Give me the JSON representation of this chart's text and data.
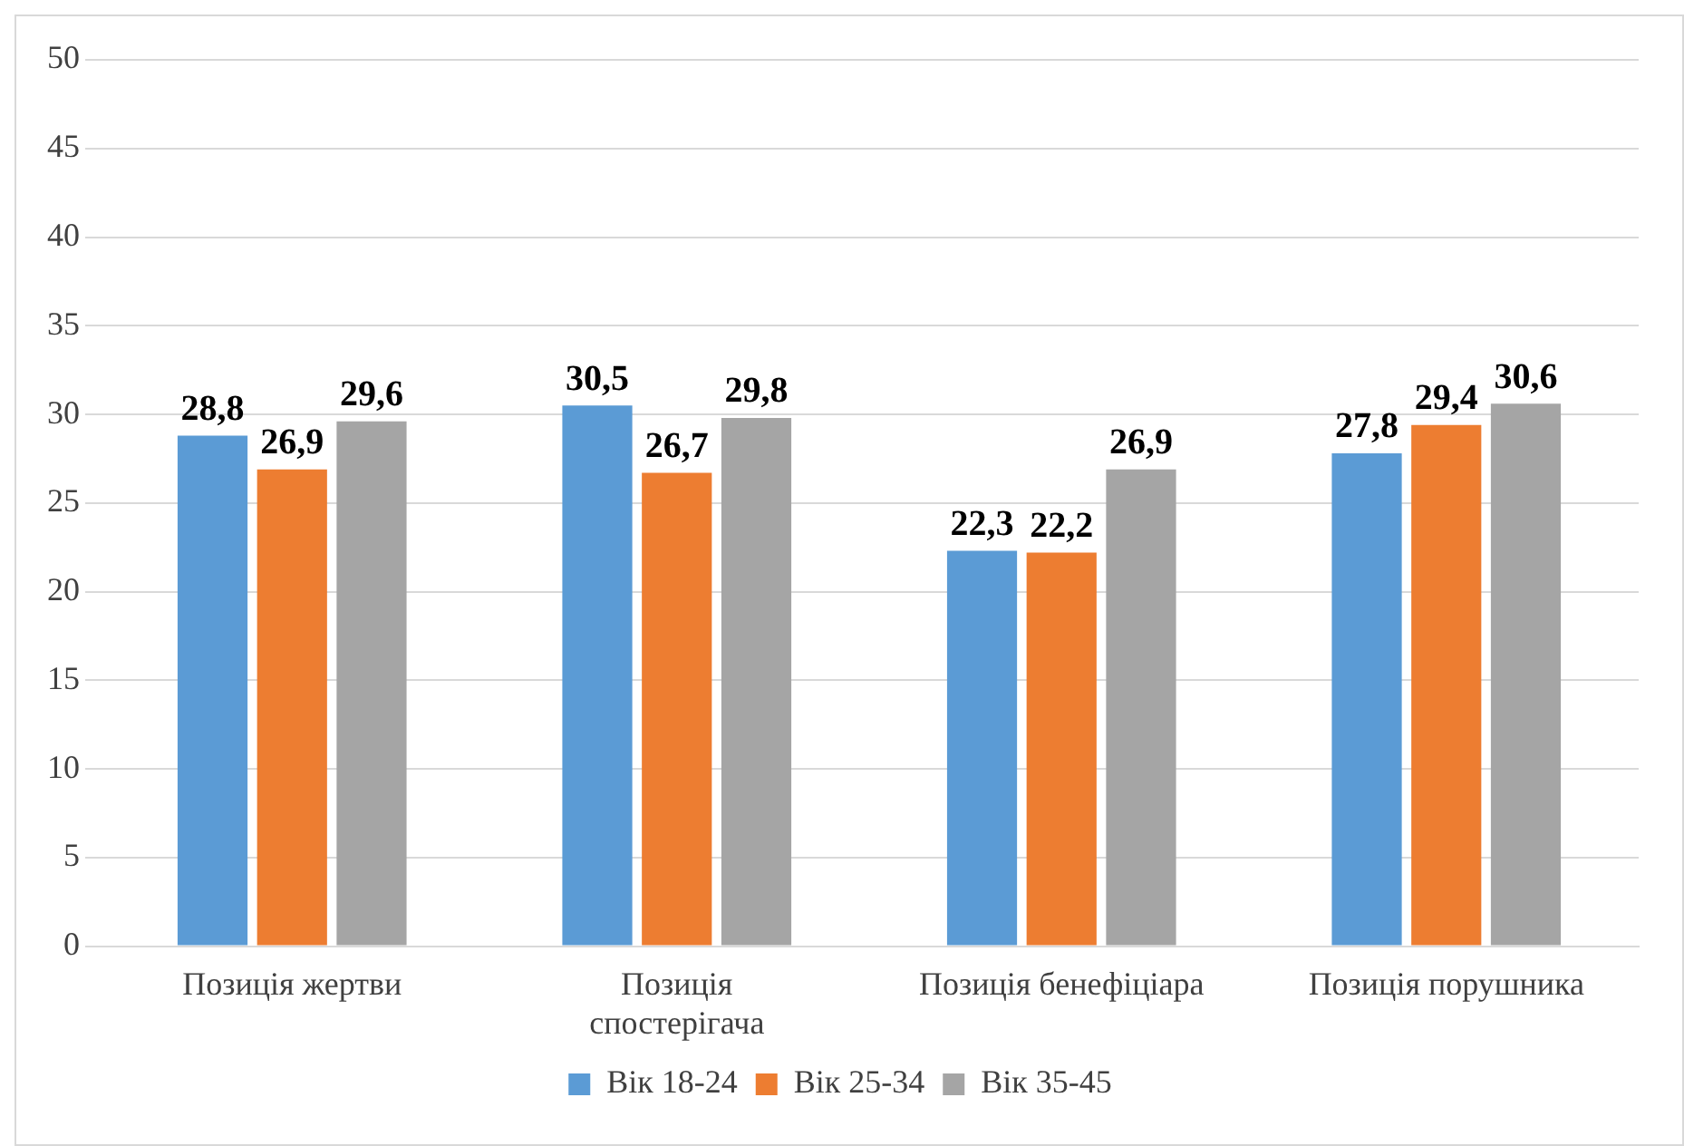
{
  "chart_data": {
    "type": "bar",
    "categories": [
      "Позиція жертви",
      "Позиція спостерігача",
      "Позиція бенефіціара",
      "Позиція порушника"
    ],
    "series": [
      {
        "name": "Вік 18-24",
        "color": "#5b9bd5",
        "values": [
          28.8,
          30.5,
          22.3,
          27.8
        ],
        "value_labels": [
          "28,8",
          "30,5",
          "22,3",
          "27,8"
        ]
      },
      {
        "name": "Вік 25-34",
        "color": "#ed7d31",
        "values": [
          26.9,
          26.7,
          22.2,
          29.4
        ],
        "value_labels": [
          "26,9",
          "26,7",
          "22,2",
          "29,4"
        ]
      },
      {
        "name": "Вік 35-45",
        "color": "#a5a5a5",
        "values": [
          29.6,
          29.8,
          26.9,
          30.6
        ],
        "value_labels": [
          "29,6",
          "29,8",
          "26,9",
          "30,6"
        ]
      }
    ],
    "ylim": [
      0,
      50
    ],
    "yticks": [
      0,
      5,
      10,
      15,
      20,
      25,
      30,
      35,
      40,
      45,
      50
    ],
    "grid": "y",
    "legend": "bottom"
  }
}
